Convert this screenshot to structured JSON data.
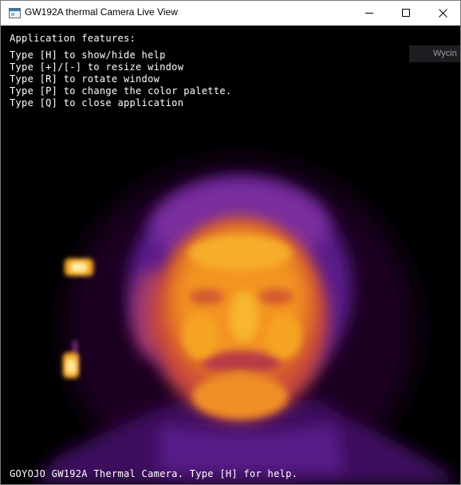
{
  "window": {
    "title": "GW192A thermal Camera Live View",
    "controls": [
      "minimize",
      "maximize",
      "close"
    ]
  },
  "help": {
    "header": "Application features:",
    "lines": [
      "Type [H] to show/hide help",
      "Type [+]/[-] to resize window",
      "Type [R] to rotate window",
      "Type [P] to change the color palette.",
      "Type [Q] to close application"
    ]
  },
  "footer": "GOYOJO GW192A Thermal Camera. Type [H] for help.",
  "background_window_fragment": "Wycin",
  "thermal_view": {
    "palette": "iron/inferno",
    "colors": {
      "cold": "#000000",
      "mid": "#5a1a8c",
      "warm": "#d4463a",
      "hot": "#f5a820",
      "hottest": "#fff6c0"
    }
  }
}
